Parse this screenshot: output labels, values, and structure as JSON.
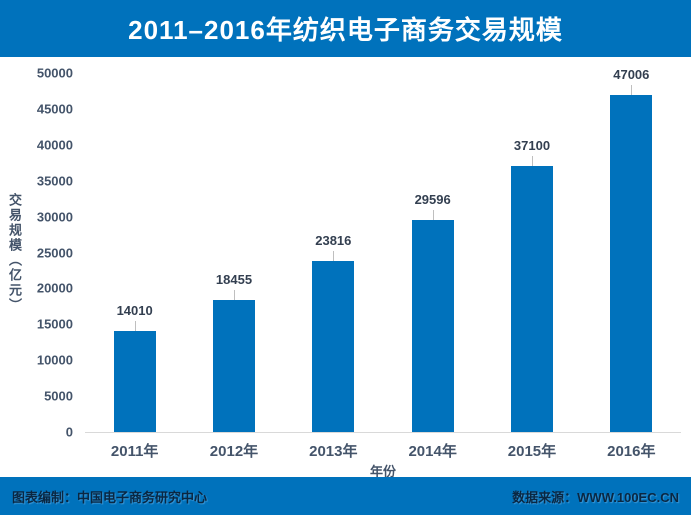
{
  "header": {
    "title": "2011–2016年纺织电子商务交易规模",
    "bg_color": "#0072bc",
    "text_color": "#ffffff"
  },
  "footer": {
    "left_credit": "图表编制：中国电子商务研究中心",
    "right_credit": "数据来源：WWW.100EC.CN",
    "bg_color": "#0072bc",
    "text_color": "#0a2742"
  },
  "chart_data": {
    "type": "bar",
    "title": "2011–2016年纺织电子商务交易规模",
    "categories": [
      "2011年",
      "2012年",
      "2013年",
      "2014年",
      "2015年",
      "2016年"
    ],
    "values": [
      14010,
      18455,
      23816,
      29596,
      37100,
      47006
    ],
    "xlabel": "年份",
    "ylabel": "交易规模（亿元）",
    "ylim": [
      0,
      50000
    ],
    "ytick_step": 5000,
    "yticks": [
      0,
      5000,
      10000,
      15000,
      20000,
      25000,
      30000,
      35000,
      40000,
      45000,
      50000
    ],
    "grid": false,
    "legend_position": "none",
    "bar_color": "#0072bc",
    "value_label_color": "#333f50",
    "axis_text_color": "#44546a",
    "baseline_color": "#d9d9d9"
  }
}
